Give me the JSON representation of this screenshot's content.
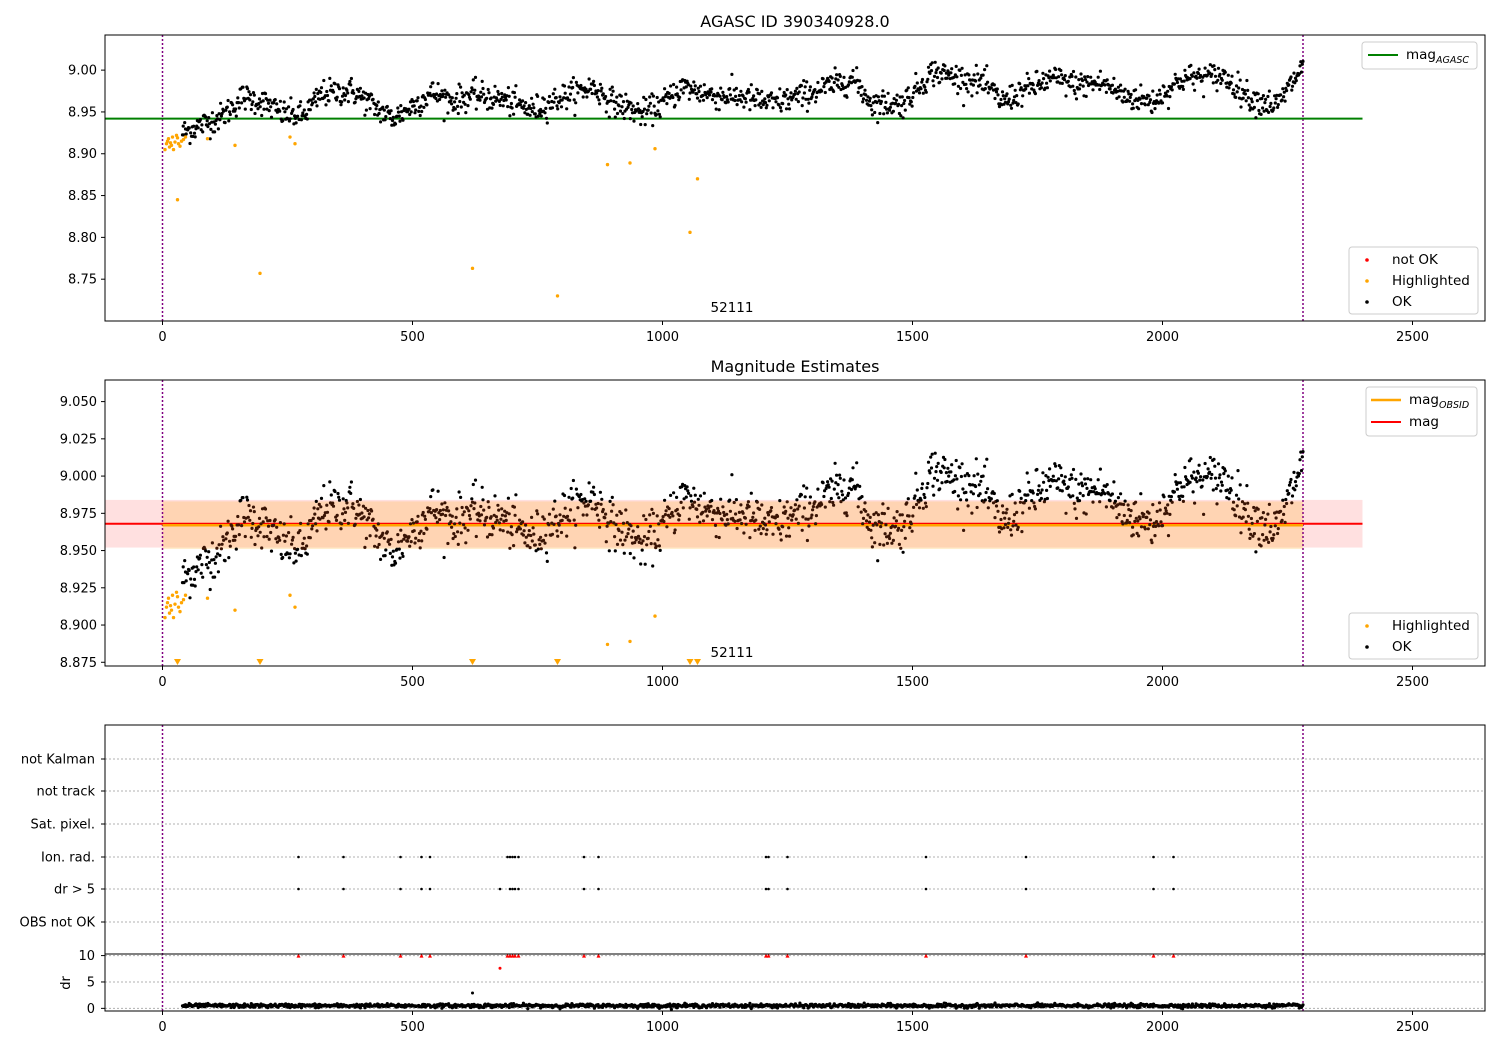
{
  "chart_data": [
    {
      "type": "scatter",
      "title": "AGASC ID 390340928.0",
      "xlim": [
        -115,
        2645
      ],
      "ylim": [
        8.7,
        9.042
      ],
      "xticks": [
        "0",
        "500",
        "1000",
        "1500",
        "2000",
        "2500"
      ],
      "yticks": [
        "8.75",
        "8.80",
        "8.85",
        "8.90",
        "8.95",
        "9.00"
      ],
      "xtick_values": [
        0,
        500,
        1000,
        1500,
        2000,
        2500
      ],
      "ytick_values": [
        8.75,
        8.8,
        8.85,
        8.9,
        8.95,
        9.0
      ],
      "vlines": [
        0,
        2281
      ],
      "hline": {
        "name": "mag_AGASC",
        "y": 8.942,
        "x_range": [
          -115,
          2400
        ],
        "color": "#008000"
      },
      "annotation": {
        "text": "52111",
        "x": 1140,
        "y": 8.712
      },
      "legend_top": [
        {
          "label": "mag",
          "sub": "AGASC",
          "color": "#008000"
        }
      ],
      "legend_bottom": [
        {
          "label": "not OK",
          "color": "#ff0000"
        },
        {
          "label": "Highlighted",
          "color": "#ffa500"
        },
        {
          "label": "OK",
          "color": "#000000"
        }
      ],
      "highlighted_points": [
        [
          5,
          8.905
        ],
        [
          8,
          8.912
        ],
        [
          10,
          8.915
        ],
        [
          12,
          8.918
        ],
        [
          14,
          8.908
        ],
        [
          16,
          8.913
        ],
        [
          18,
          8.91
        ],
        [
          20,
          8.92
        ],
        [
          22,
          8.905
        ],
        [
          25,
          8.914
        ],
        [
          28,
          8.922
        ],
        [
          30,
          8.919
        ],
        [
          32,
          8.912
        ],
        [
          35,
          8.909
        ],
        [
          38,
          8.915
        ],
        [
          42,
          8.917
        ],
        [
          46,
          8.92
        ],
        [
          30,
          8.845
        ],
        [
          90,
          8.918
        ],
        [
          145,
          8.91
        ],
        [
          195,
          8.757
        ],
        [
          255,
          8.92
        ],
        [
          265,
          8.912
        ],
        [
          620,
          8.763
        ],
        [
          790,
          8.73
        ],
        [
          890,
          8.887
        ],
        [
          935,
          8.889
        ],
        [
          985,
          8.906
        ],
        [
          1055,
          8.806
        ],
        [
          1070,
          8.87
        ]
      ],
      "ok_series": {
        "x_start": 40,
        "x_end": 2281,
        "n": 1500,
        "baseline": [
          [
            40,
            8.925
          ],
          [
            120,
            8.945
          ],
          [
            160,
            8.968
          ],
          [
            200,
            8.962
          ],
          [
            240,
            8.948
          ],
          [
            280,
            8.945
          ],
          [
            320,
            8.972
          ],
          [
            380,
            8.975
          ],
          [
            420,
            8.958
          ],
          [
            460,
            8.942
          ],
          [
            500,
            8.957
          ],
          [
            540,
            8.973
          ],
          [
            580,
            8.963
          ],
          [
            620,
            8.97
          ],
          [
            680,
            8.965
          ],
          [
            740,
            8.952
          ],
          [
            800,
            8.968
          ],
          [
            860,
            8.98
          ],
          [
            900,
            8.962
          ],
          [
            960,
            8.948
          ],
          [
            1000,
            8.96
          ],
          [
            1040,
            8.98
          ],
          [
            1100,
            8.97
          ],
          [
            1160,
            8.968
          ],
          [
            1220,
            8.96
          ],
          [
            1280,
            8.97
          ],
          [
            1340,
            8.982
          ],
          [
            1380,
            8.99
          ],
          [
            1420,
            8.96
          ],
          [
            1480,
            8.96
          ],
          [
            1540,
            8.998
          ],
          [
            1600,
            8.99
          ],
          [
            1640,
            8.985
          ],
          [
            1680,
            8.962
          ],
          [
            1720,
            8.975
          ],
          [
            1780,
            8.99
          ],
          [
            1830,
            8.982
          ],
          [
            1880,
            8.985
          ],
          [
            1920,
            8.97
          ],
          [
            1980,
            8.962
          ],
          [
            2040,
            8.99
          ],
          [
            2120,
            8.993
          ],
          [
            2180,
            8.965
          ],
          [
            2230,
            8.958
          ],
          [
            2281,
            9.005
          ]
        ],
        "noise": 0.008
      }
    },
    {
      "type": "scatter",
      "title": "Magnitude Estimates",
      "xlim": [
        -115,
        2645
      ],
      "ylim": [
        8.8725,
        9.0645
      ],
      "xticks": [
        "0",
        "500",
        "1000",
        "1500",
        "2000",
        "2500"
      ],
      "yticks": [
        "8.875",
        "8.900",
        "8.925",
        "8.950",
        "8.975",
        "9.000",
        "9.025",
        "9.050"
      ],
      "xtick_values": [
        0,
        500,
        1000,
        1500,
        2000,
        2500
      ],
      "ytick_values": [
        8.875,
        8.9,
        8.925,
        8.95,
        8.975,
        9.0,
        9.025,
        9.05
      ],
      "vlines": [
        0,
        2281
      ],
      "mag_line": {
        "name": "mag",
        "y": 8.968,
        "band": [
          8.952,
          8.984
        ],
        "color": "#ff0000"
      },
      "mag_obsid_line": {
        "name": "mag_OBSID",
        "y": 8.967,
        "band": [
          8.951,
          8.983
        ],
        "color": "#ffa500"
      },
      "annotation": {
        "text": "52111",
        "x": 1140,
        "y": 8.877
      },
      "legend_top": [
        {
          "label": "mag",
          "sub": "OBSID",
          "color": "#ffa500"
        },
        {
          "label": "mag",
          "sub": "",
          "color": "#ff0000"
        }
      ],
      "legend_bottom": [
        {
          "label": "Highlighted",
          "color": "#ffa500"
        },
        {
          "label": "OK",
          "color": "#000000"
        }
      ],
      "clipped_markers_x": [
        30,
        195,
        620,
        790,
        1055,
        1070
      ],
      "highlighted_points": [
        [
          5,
          8.905
        ],
        [
          8,
          8.912
        ],
        [
          10,
          8.915
        ],
        [
          12,
          8.918
        ],
        [
          14,
          8.908
        ],
        [
          16,
          8.913
        ],
        [
          18,
          8.91
        ],
        [
          20,
          8.92
        ],
        [
          22,
          8.905
        ],
        [
          25,
          8.914
        ],
        [
          28,
          8.922
        ],
        [
          30,
          8.919
        ],
        [
          32,
          8.912
        ],
        [
          35,
          8.909
        ],
        [
          38,
          8.915
        ],
        [
          42,
          8.917
        ],
        [
          46,
          8.92
        ],
        [
          90,
          8.918
        ],
        [
          145,
          8.91
        ],
        [
          255,
          8.92
        ],
        [
          265,
          8.912
        ],
        [
          890,
          8.887
        ],
        [
          935,
          8.889
        ],
        [
          985,
          8.906
        ]
      ]
    },
    {
      "type": "scatter",
      "title": "",
      "xlim": [
        -115,
        2645
      ],
      "xticks": [
        "0",
        "500",
        "1000",
        "1500",
        "2000",
        "2500"
      ],
      "xtick_values": [
        0,
        500,
        1000,
        1500,
        2000,
        2500
      ],
      "vlines": [
        0,
        2281
      ],
      "flag_rows": [
        "not Kalman",
        "not track",
        "Sat. pixel.",
        "Ion. rad.",
        "dr > 5",
        "OBS not OK"
      ],
      "flag_events": {
        "Ion. rad.": [
          272,
          362,
          476,
          518,
          535,
          690,
          695,
          700,
          705,
          712,
          843,
          872,
          1207,
          1212,
          1250,
          1527,
          1727,
          1982,
          2022
        ],
        "dr > 5": [
          272,
          362,
          476,
          518,
          535,
          675,
          695,
          700,
          705,
          712,
          843,
          872,
          1207,
          1212,
          1250,
          1527,
          1727,
          1982,
          2022
        ]
      },
      "dr_ylim": [
        -0.5,
        10.3
      ],
      "dr_yticks": [
        "0",
        "5",
        "10"
      ],
      "dr_ytick_values": [
        0,
        5,
        10
      ],
      "dr_ylabel": "dr",
      "dr_capped_x": [
        272,
        362,
        476,
        518,
        535,
        690,
        695,
        700,
        705,
        712,
        843,
        872,
        1207,
        1212,
        1250,
        1527,
        1727,
        1982,
        2022
      ],
      "dr_capped_y": 10,
      "dr_outliers": [
        [
          675,
          7.6
        ],
        [
          620,
          2.9
        ]
      ],
      "dr_baseline": 0.5
    }
  ]
}
